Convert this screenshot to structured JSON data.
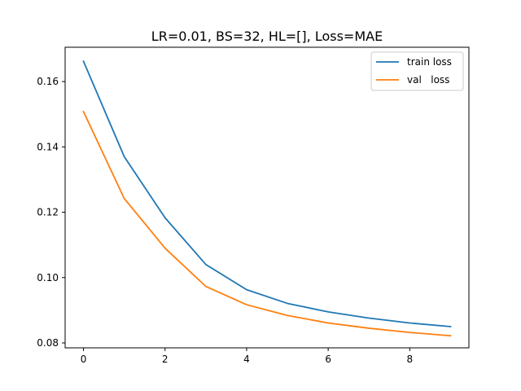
{
  "chart_data": {
    "type": "line",
    "title": "LR=0.01, BS=32, HL=[], Loss=MAE",
    "xlabel": "",
    "ylabel": "",
    "xlim": [
      -0.45,
      9.45
    ],
    "ylim": [
      0.0785,
      0.1705
    ],
    "x_ticks": [
      0,
      2,
      4,
      6,
      8
    ],
    "x_tick_labels": [
      "0",
      "2",
      "4",
      "6",
      "8"
    ],
    "y_ticks": [
      0.08,
      0.1,
      0.12,
      0.14,
      0.16
    ],
    "y_tick_labels": [
      "0.08",
      "0.10",
      "0.12",
      "0.14",
      "0.16"
    ],
    "grid": false,
    "legend_position": "top-right",
    "x": [
      0,
      1,
      2,
      3,
      4,
      5,
      6,
      7,
      8,
      9
    ],
    "series": [
      {
        "name": "train loss",
        "color": "#1f77b4",
        "values": [
          0.1662,
          0.137,
          0.1183,
          0.104,
          0.0963,
          0.0921,
          0.0895,
          0.0876,
          0.0861,
          0.085
        ]
      },
      {
        "name": "val   loss",
        "color": "#ff7f0e",
        "values": [
          0.1508,
          0.1242,
          0.109,
          0.0973,
          0.0917,
          0.0884,
          0.0861,
          0.0845,
          0.0832,
          0.0822
        ]
      }
    ]
  }
}
